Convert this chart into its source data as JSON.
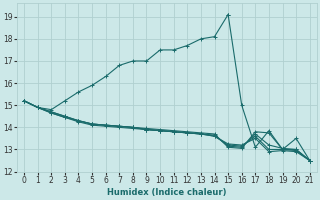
{
  "background_color": "#cce8e8",
  "grid_color": "#b0d0d0",
  "line_color": "#1a6b6b",
  "xlabel": "Humidex (Indice chaleur)",
  "xlim": [
    -0.5,
    21.5
  ],
  "ylim": [
    12.0,
    19.6
  ],
  "xticks": [
    0,
    1,
    2,
    3,
    4,
    5,
    6,
    7,
    8,
    9,
    10,
    11,
    12,
    13,
    14,
    15,
    16,
    17,
    18,
    19,
    20,
    21
  ],
  "yticks": [
    12,
    13,
    14,
    15,
    16,
    17,
    18,
    19
  ],
  "series": [
    {
      "x": [
        0,
        1,
        2,
        3,
        4,
        5,
        6,
        7,
        8,
        9,
        10,
        11,
        12,
        13,
        14,
        15
      ],
      "y": [
        15.2,
        14.9,
        14.8,
        15.2,
        15.6,
        15.9,
        16.3,
        16.8,
        17.0,
        17.0,
        17.5,
        17.5,
        17.7,
        18.0,
        18.1,
        19.1
      ]
    },
    {
      "x": [
        15,
        16,
        17,
        18,
        19,
        20,
        21
      ],
      "y": [
        19.1,
        15.0,
        13.1,
        13.85,
        13.0,
        13.5,
        12.5
      ]
    },
    {
      "x": [
        0,
        1,
        2,
        3,
        4,
        5,
        6,
        7,
        8,
        9,
        10,
        11,
        12,
        13,
        14,
        15,
        16,
        17,
        18,
        19,
        20,
        21
      ],
      "y": [
        15.2,
        14.9,
        14.7,
        14.5,
        14.3,
        14.15,
        14.1,
        14.05,
        14.0,
        13.95,
        13.9,
        13.85,
        13.8,
        13.75,
        13.7,
        13.1,
        13.05,
        13.8,
        13.75,
        13.0,
        13.0,
        12.5
      ]
    },
    {
      "x": [
        0,
        1,
        2,
        3,
        4,
        5,
        6,
        7,
        8,
        9,
        10,
        11,
        12,
        13,
        14,
        15,
        16,
        17,
        18,
        19,
        20,
        21
      ],
      "y": [
        15.2,
        14.9,
        14.7,
        14.5,
        14.3,
        14.15,
        14.1,
        14.05,
        14.0,
        13.9,
        13.85,
        13.8,
        13.75,
        13.7,
        13.65,
        13.15,
        13.1,
        13.7,
        13.2,
        13.05,
        13.0,
        12.5
      ]
    },
    {
      "x": [
        0,
        1,
        2,
        3,
        4,
        5,
        6,
        7,
        8,
        9,
        10,
        11,
        12,
        13,
        14,
        15,
        16,
        17,
        18,
        19,
        20,
        21
      ],
      "y": [
        15.2,
        14.9,
        14.65,
        14.45,
        14.3,
        14.15,
        14.1,
        14.05,
        14.0,
        13.9,
        13.85,
        13.8,
        13.75,
        13.7,
        13.6,
        13.2,
        13.15,
        13.6,
        13.0,
        13.0,
        12.95,
        12.5
      ]
    },
    {
      "x": [
        0,
        1,
        2,
        3,
        4,
        5,
        6,
        7,
        8,
        9,
        10,
        11,
        12,
        13,
        14,
        15,
        16,
        17,
        18,
        19,
        20,
        21
      ],
      "y": [
        15.2,
        14.9,
        14.65,
        14.45,
        14.25,
        14.1,
        14.05,
        14.0,
        13.95,
        13.9,
        13.85,
        13.8,
        13.75,
        13.7,
        13.6,
        13.25,
        13.2,
        13.5,
        12.9,
        12.95,
        12.9,
        12.5
      ]
    }
  ]
}
